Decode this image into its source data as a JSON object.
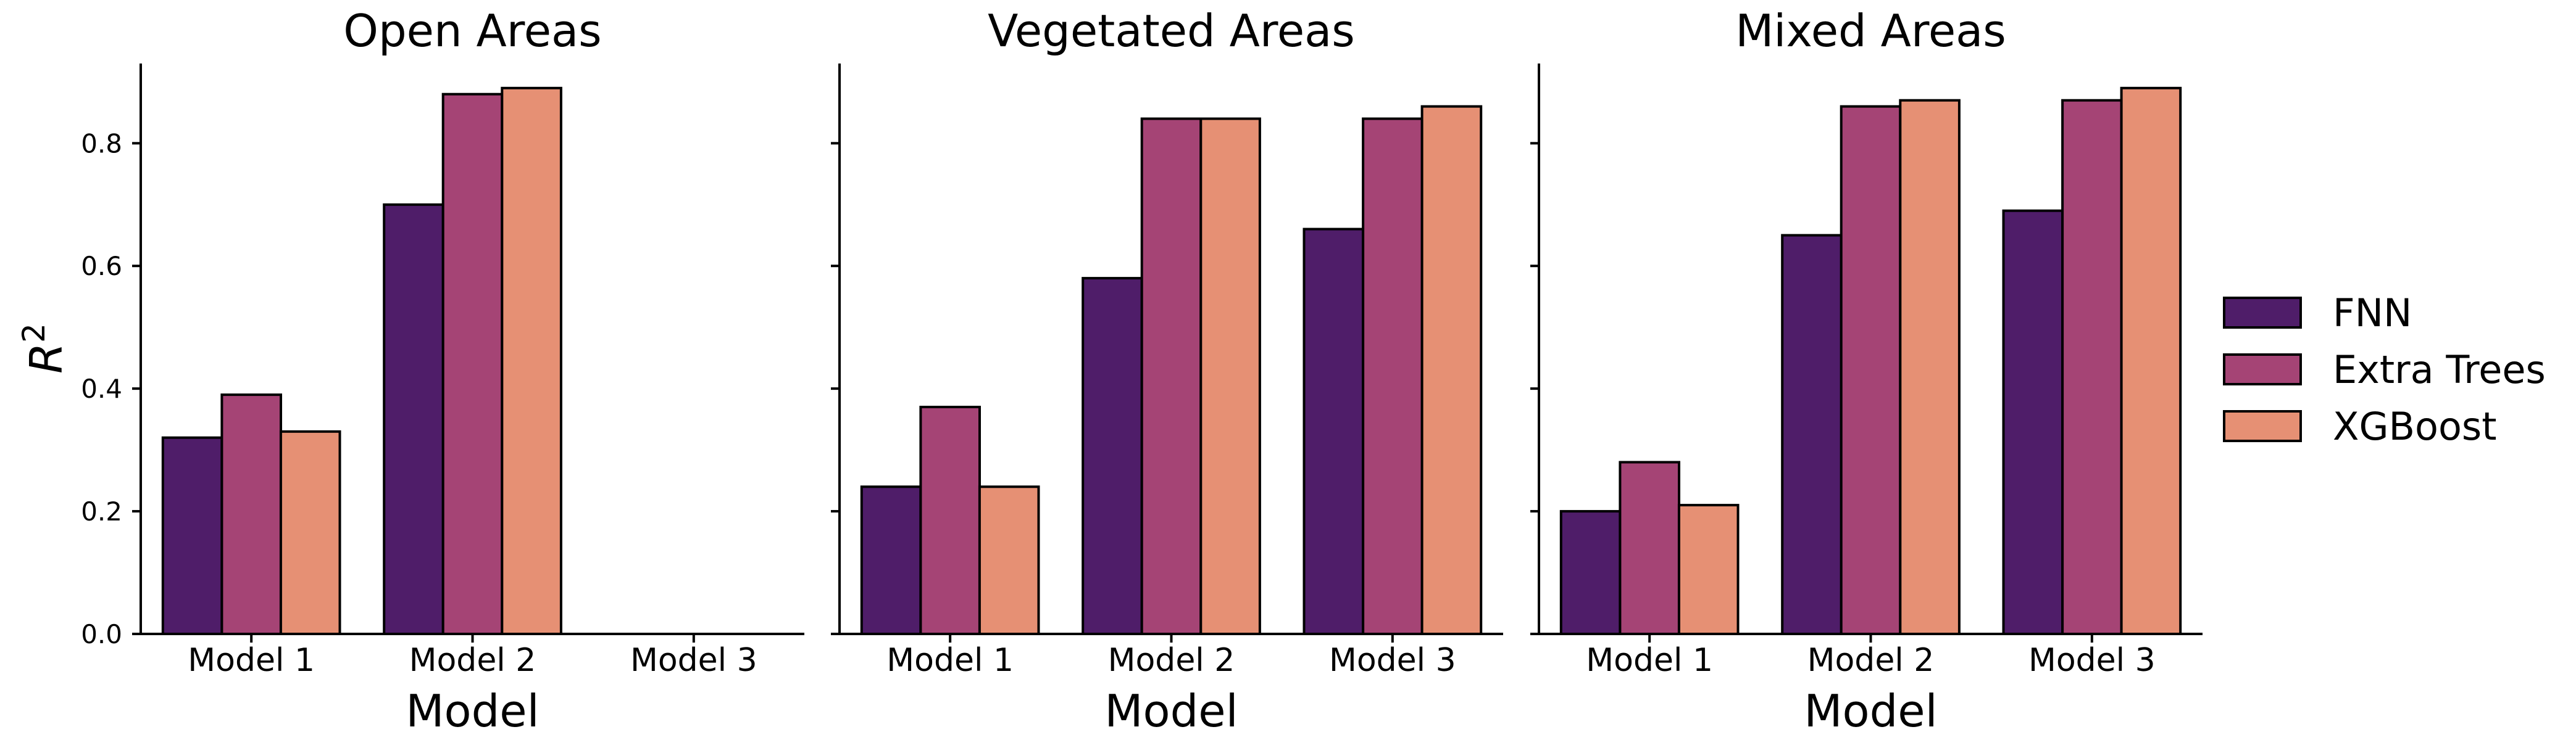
{
  "chart_data": {
    "type": "bar",
    "ylabel": "R",
    "ylabel_superscript": "2",
    "xlabel": "Model",
    "ylim": [
      0,
      0.93
    ],
    "yticks": [
      "0.0",
      "0.2",
      "0.4",
      "0.6",
      "0.8"
    ],
    "ytick_values": [
      0.0,
      0.2,
      0.4,
      0.6,
      0.8
    ],
    "categories": [
      "Model 1",
      "Model 2",
      "Model 3"
    ],
    "legend": {
      "position": "right",
      "entries": [
        "FNN",
        "Extra Trees",
        "XGBoost"
      ]
    },
    "series_colors": [
      "#4f1d69",
      "#a54475",
      "#e69074"
    ],
    "grid": false,
    "panels": [
      {
        "title": "Open Areas",
        "series": [
          {
            "name": "FNN",
            "values": [
              0.32,
              0.7,
              null
            ]
          },
          {
            "name": "Extra Trees",
            "values": [
              0.39,
              0.88,
              null
            ]
          },
          {
            "name": "XGBoost",
            "values": [
              0.33,
              0.89,
              null
            ]
          }
        ]
      },
      {
        "title": "Vegetated Areas",
        "series": [
          {
            "name": "FNN",
            "values": [
              0.24,
              0.58,
              0.66
            ]
          },
          {
            "name": "Extra Trees",
            "values": [
              0.37,
              0.84,
              0.84
            ]
          },
          {
            "name": "XGBoost",
            "values": [
              0.24,
              0.84,
              0.86
            ]
          }
        ]
      },
      {
        "title": "Mixed Areas",
        "series": [
          {
            "name": "FNN",
            "values": [
              0.2,
              0.65,
              0.69
            ]
          },
          {
            "name": "Extra Trees",
            "values": [
              0.28,
              0.86,
              0.87
            ]
          },
          {
            "name": "XGBoost",
            "values": [
              0.21,
              0.87,
              0.89
            ]
          }
        ]
      }
    ]
  }
}
